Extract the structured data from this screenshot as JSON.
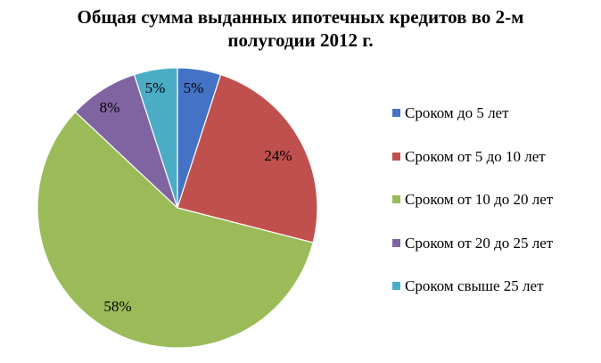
{
  "chart_data": {
    "type": "pie",
    "title_line1": "Общая сумма выданных ипотечных кредитов во 2-м",
    "title_line2": "полугодии 2012 г.",
    "slices": [
      {
        "name": "Сроком до 5 лет",
        "value": 5,
        "label": "5%",
        "color": "#4472C4"
      },
      {
        "name": "Сроком от 5 до 10 лет",
        "value": 24,
        "label": "24%",
        "color": "#C0504D"
      },
      {
        "name": "Сроком от 10 до 20 лет",
        "value": 58,
        "label": "58%",
        "color": "#9BBB59"
      },
      {
        "name": "Сроком от 20 до 25 лет",
        "value": 8,
        "label": "8%",
        "color": "#8064A2"
      },
      {
        "name": "Сроком свыше 25 лет",
        "value": 5,
        "label": "5%",
        "color": "#4BACC6"
      }
    ],
    "legend_position": "right"
  }
}
